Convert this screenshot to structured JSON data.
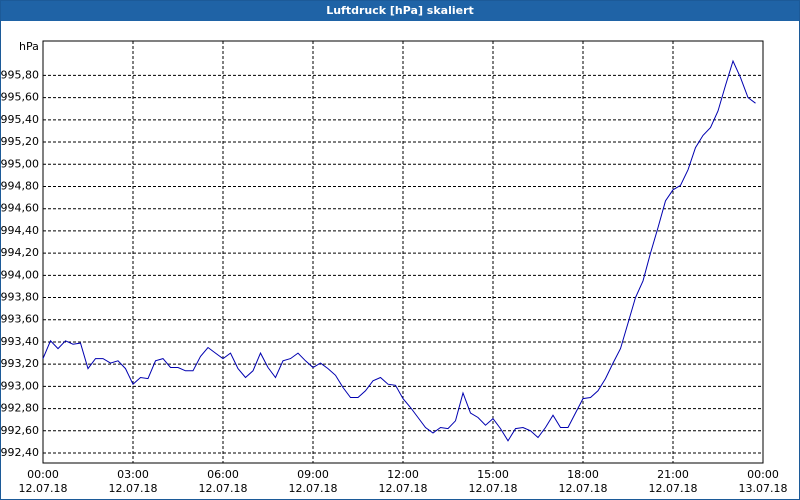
{
  "chart_data": {
    "type": "line",
    "title": "Luftdruck [hPa] skaliert",
    "y_unit": "hPa",
    "x": [
      "2018-07-12T00:00",
      "2018-07-12T00:15",
      "2018-07-12T00:30",
      "2018-07-12T00:45",
      "2018-07-12T01:00",
      "2018-07-12T01:15",
      "2018-07-12T01:30",
      "2018-07-12T01:45",
      "2018-07-12T02:00",
      "2018-07-12T02:15",
      "2018-07-12T02:30",
      "2018-07-12T02:45",
      "2018-07-12T03:00",
      "2018-07-12T03:15",
      "2018-07-12T03:30",
      "2018-07-12T03:45",
      "2018-07-12T04:00",
      "2018-07-12T04:15",
      "2018-07-12T04:30",
      "2018-07-12T04:45",
      "2018-07-12T05:00",
      "2018-07-12T05:15",
      "2018-07-12T05:30",
      "2018-07-12T05:45",
      "2018-07-12T06:00",
      "2018-07-12T06:15",
      "2018-07-12T06:30",
      "2018-07-12T06:45",
      "2018-07-12T07:00",
      "2018-07-12T07:15",
      "2018-07-12T07:30",
      "2018-07-12T07:45",
      "2018-07-12T08:00",
      "2018-07-12T08:15",
      "2018-07-12T08:30",
      "2018-07-12T08:45",
      "2018-07-12T09:00",
      "2018-07-12T09:15",
      "2018-07-12T09:30",
      "2018-07-12T09:45",
      "2018-07-12T10:00",
      "2018-07-12T10:15",
      "2018-07-12T10:30",
      "2018-07-12T10:45",
      "2018-07-12T11:00",
      "2018-07-12T11:15",
      "2018-07-12T11:30",
      "2018-07-12T11:45",
      "2018-07-12T12:00",
      "2018-07-12T12:15",
      "2018-07-12T12:30",
      "2018-07-12T12:45",
      "2018-07-12T13:00",
      "2018-07-12T13:15",
      "2018-07-12T13:30",
      "2018-07-12T13:45",
      "2018-07-12T14:00",
      "2018-07-12T14:15",
      "2018-07-12T14:30",
      "2018-07-12T14:45",
      "2018-07-12T15:00",
      "2018-07-12T15:15",
      "2018-07-12T15:30",
      "2018-07-12T15:45",
      "2018-07-12T16:00",
      "2018-07-12T16:15",
      "2018-07-12T16:30",
      "2018-07-12T16:45",
      "2018-07-12T17:00",
      "2018-07-12T17:15",
      "2018-07-12T17:30",
      "2018-07-12T17:45",
      "2018-07-12T18:00",
      "2018-07-12T18:15",
      "2018-07-12T18:30",
      "2018-07-12T18:45",
      "2018-07-12T19:00",
      "2018-07-12T19:15",
      "2018-07-12T19:30",
      "2018-07-12T19:45",
      "2018-07-12T20:00",
      "2018-07-12T20:15",
      "2018-07-12T20:30",
      "2018-07-12T20:45",
      "2018-07-12T21:00",
      "2018-07-12T21:15",
      "2018-07-12T21:30",
      "2018-07-12T21:45",
      "2018-07-12T22:00",
      "2018-07-12T22:15",
      "2018-07-12T22:30",
      "2018-07-12T22:45",
      "2018-07-12T23:00",
      "2018-07-12T23:15",
      "2018-07-12T23:30",
      "2018-07-12T23:45"
    ],
    "series": [
      {
        "color": "#0000b0",
        "values": [
          993.25,
          993.41,
          993.34,
          993.41,
          993.38,
          993.39,
          993.16,
          993.25,
          993.25,
          993.21,
          993.23,
          993.16,
          993.02,
          993.08,
          993.07,
          993.23,
          993.25,
          993.17,
          993.17,
          993.14,
          993.14,
          993.27,
          993.35,
          993.3,
          993.25,
          993.3,
          993.16,
          993.08,
          993.14,
          993.3,
          993.17,
          993.08,
          993.23,
          993.25,
          993.3,
          993.23,
          993.17,
          993.21,
          993.16,
          993.1,
          992.99,
          992.9,
          992.9,
          992.96,
          993.05,
          993.08,
          993.02,
          993.01,
          992.89,
          992.81,
          992.72,
          992.63,
          992.58,
          992.63,
          992.62,
          992.69,
          992.94,
          992.76,
          992.72,
          992.65,
          992.71,
          992.62,
          992.51,
          992.62,
          992.63,
          992.6,
          992.54,
          992.63,
          992.74,
          992.63,
          992.63,
          992.76,
          992.89,
          992.9,
          992.96,
          993.07,
          993.21,
          993.34,
          993.57,
          993.8,
          993.95,
          994.2,
          994.43,
          994.67,
          994.77,
          994.81,
          994.95,
          995.15,
          995.26,
          995.33,
          995.48,
          995.71,
          995.93,
          995.78,
          995.6,
          995.55
        ]
      }
    ],
    "xlim": [
      "2018-07-12T00:00",
      "2018-07-13T00:00"
    ],
    "xticks": [
      {
        "value": "2018-07-12T00:00",
        "label": "00:00\n12.07.18"
      },
      {
        "value": "2018-07-12T03:00",
        "label": "03:00\n12.07.18"
      },
      {
        "value": "2018-07-12T06:00",
        "label": "06:00\n12.07.18"
      },
      {
        "value": "2018-07-12T09:00",
        "label": "09:00\n12.07.18"
      },
      {
        "value": "2018-07-12T12:00",
        "label": "12:00\n12.07.18"
      },
      {
        "value": "2018-07-12T15:00",
        "label": "15:00\n12.07.18"
      },
      {
        "value": "2018-07-12T18:00",
        "label": "18:00\n12.07.18"
      },
      {
        "value": "2018-07-12T21:00",
        "label": "21:00\n12.07.18"
      },
      {
        "value": "2018-07-13T00:00",
        "label": "00:00\n13.07.18"
      }
    ],
    "ylim": [
      992.31,
      996.11
    ],
    "yticks": [
      {
        "value": 992.4,
        "label": "992,40"
      },
      {
        "value": 992.6,
        "label": "992,60"
      },
      {
        "value": 992.8,
        "label": "992,80"
      },
      {
        "value": 993.0,
        "label": "993,00"
      },
      {
        "value": 993.2,
        "label": "993,20"
      },
      {
        "value": 993.4,
        "label": "993,40"
      },
      {
        "value": 993.6,
        "label": "993,60"
      },
      {
        "value": 993.8,
        "label": "993,80"
      },
      {
        "value": 994.0,
        "label": "994,00"
      },
      {
        "value": 994.2,
        "label": "994,20"
      },
      {
        "value": 994.4,
        "label": "994,40"
      },
      {
        "value": 994.6,
        "label": "994,60"
      },
      {
        "value": 994.8,
        "label": "994,80"
      },
      {
        "value": 995.0,
        "label": "995,00"
      },
      {
        "value": 995.2,
        "label": "995,20"
      },
      {
        "value": 995.4,
        "label": "995,40"
      },
      {
        "value": 995.6,
        "label": "995,60"
      },
      {
        "value": 995.8,
        "label": "995,80"
      }
    ],
    "grid": true
  }
}
